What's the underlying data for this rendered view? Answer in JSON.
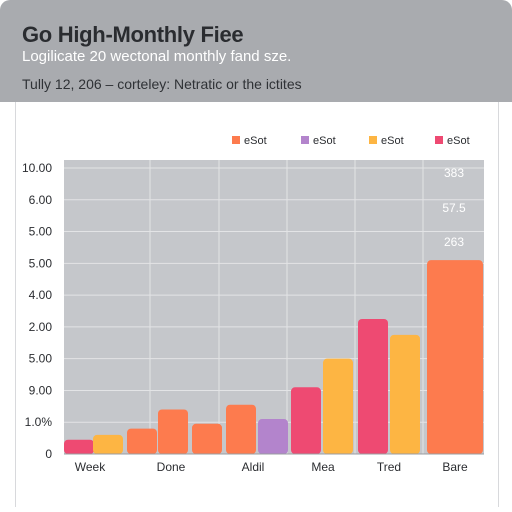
{
  "header": {
    "title": "Go High-Monthly Fiee",
    "subtitle": "Logilicate 20 wectonal monthly fand sze.",
    "caption": "Tully 12, 206 – corteley: Netratic or the ictites"
  },
  "colors": {
    "pink": "#ee4a72",
    "orange": "#fd7b4e",
    "yellow": "#fdb543",
    "purple": "#b384cc",
    "plot_bg": "#c5c7cb",
    "grid": "#e3e4e6"
  },
  "chart_data": {
    "type": "bar",
    "title": "Go High-Monthly Fiee",
    "subtitle": "Logilicate 20 wectonal monthly fand sze.",
    "legend": {
      "placement": "top-right",
      "entries": [
        {
          "name": "eSot",
          "color": "#fd7b4e"
        },
        {
          "name": "eSot",
          "color": "#b384cc"
        },
        {
          "name": "eSot",
          "color": "#fdb543"
        },
        {
          "name": "eSot",
          "color": "#ee4a72"
        }
      ]
    },
    "y_tick_labels": [
      "0",
      "1.0%",
      "9.00",
      "5.00",
      "2.00",
      "4.00",
      "5.00",
      "5.00",
      "6.00",
      "10.00"
    ],
    "categories": [
      "Week",
      "Done",
      "Aldil",
      "Mea",
      "Tred",
      "Bare"
    ],
    "bars": [
      {
        "category": "Week",
        "color": "#ee4a72",
        "level": 0.45
      },
      {
        "category": "Week",
        "color": "#fdb543",
        "level": 0.6
      },
      {
        "category": "Done",
        "color": "#fd7b4e",
        "level": 0.8
      },
      {
        "category": "Done",
        "color": "#fd7b4e",
        "level": 1.4
      },
      {
        "category": "Aldil",
        "color": "#fd7b4e",
        "level": 0.95
      },
      {
        "category": "Aldil",
        "color": "#fd7b4e",
        "level": 1.55
      },
      {
        "category": "Aldil",
        "color": "#b384cc",
        "level": 1.1
      },
      {
        "category": "Mea",
        "color": "#ee4a72",
        "level": 2.1
      },
      {
        "category": "Mea",
        "color": "#fdb543",
        "level": 3.0
      },
      {
        "category": "Tred",
        "color": "#ee4a72",
        "level": 4.25
      },
      {
        "category": "Tred",
        "color": "#fdb543",
        "level": 3.75
      },
      {
        "category": "Bare",
        "color": "#fd7b4e",
        "level": 6.1
      }
    ],
    "data_labels": [
      "383",
      "57.5",
      "263"
    ],
    "grid": true
  }
}
